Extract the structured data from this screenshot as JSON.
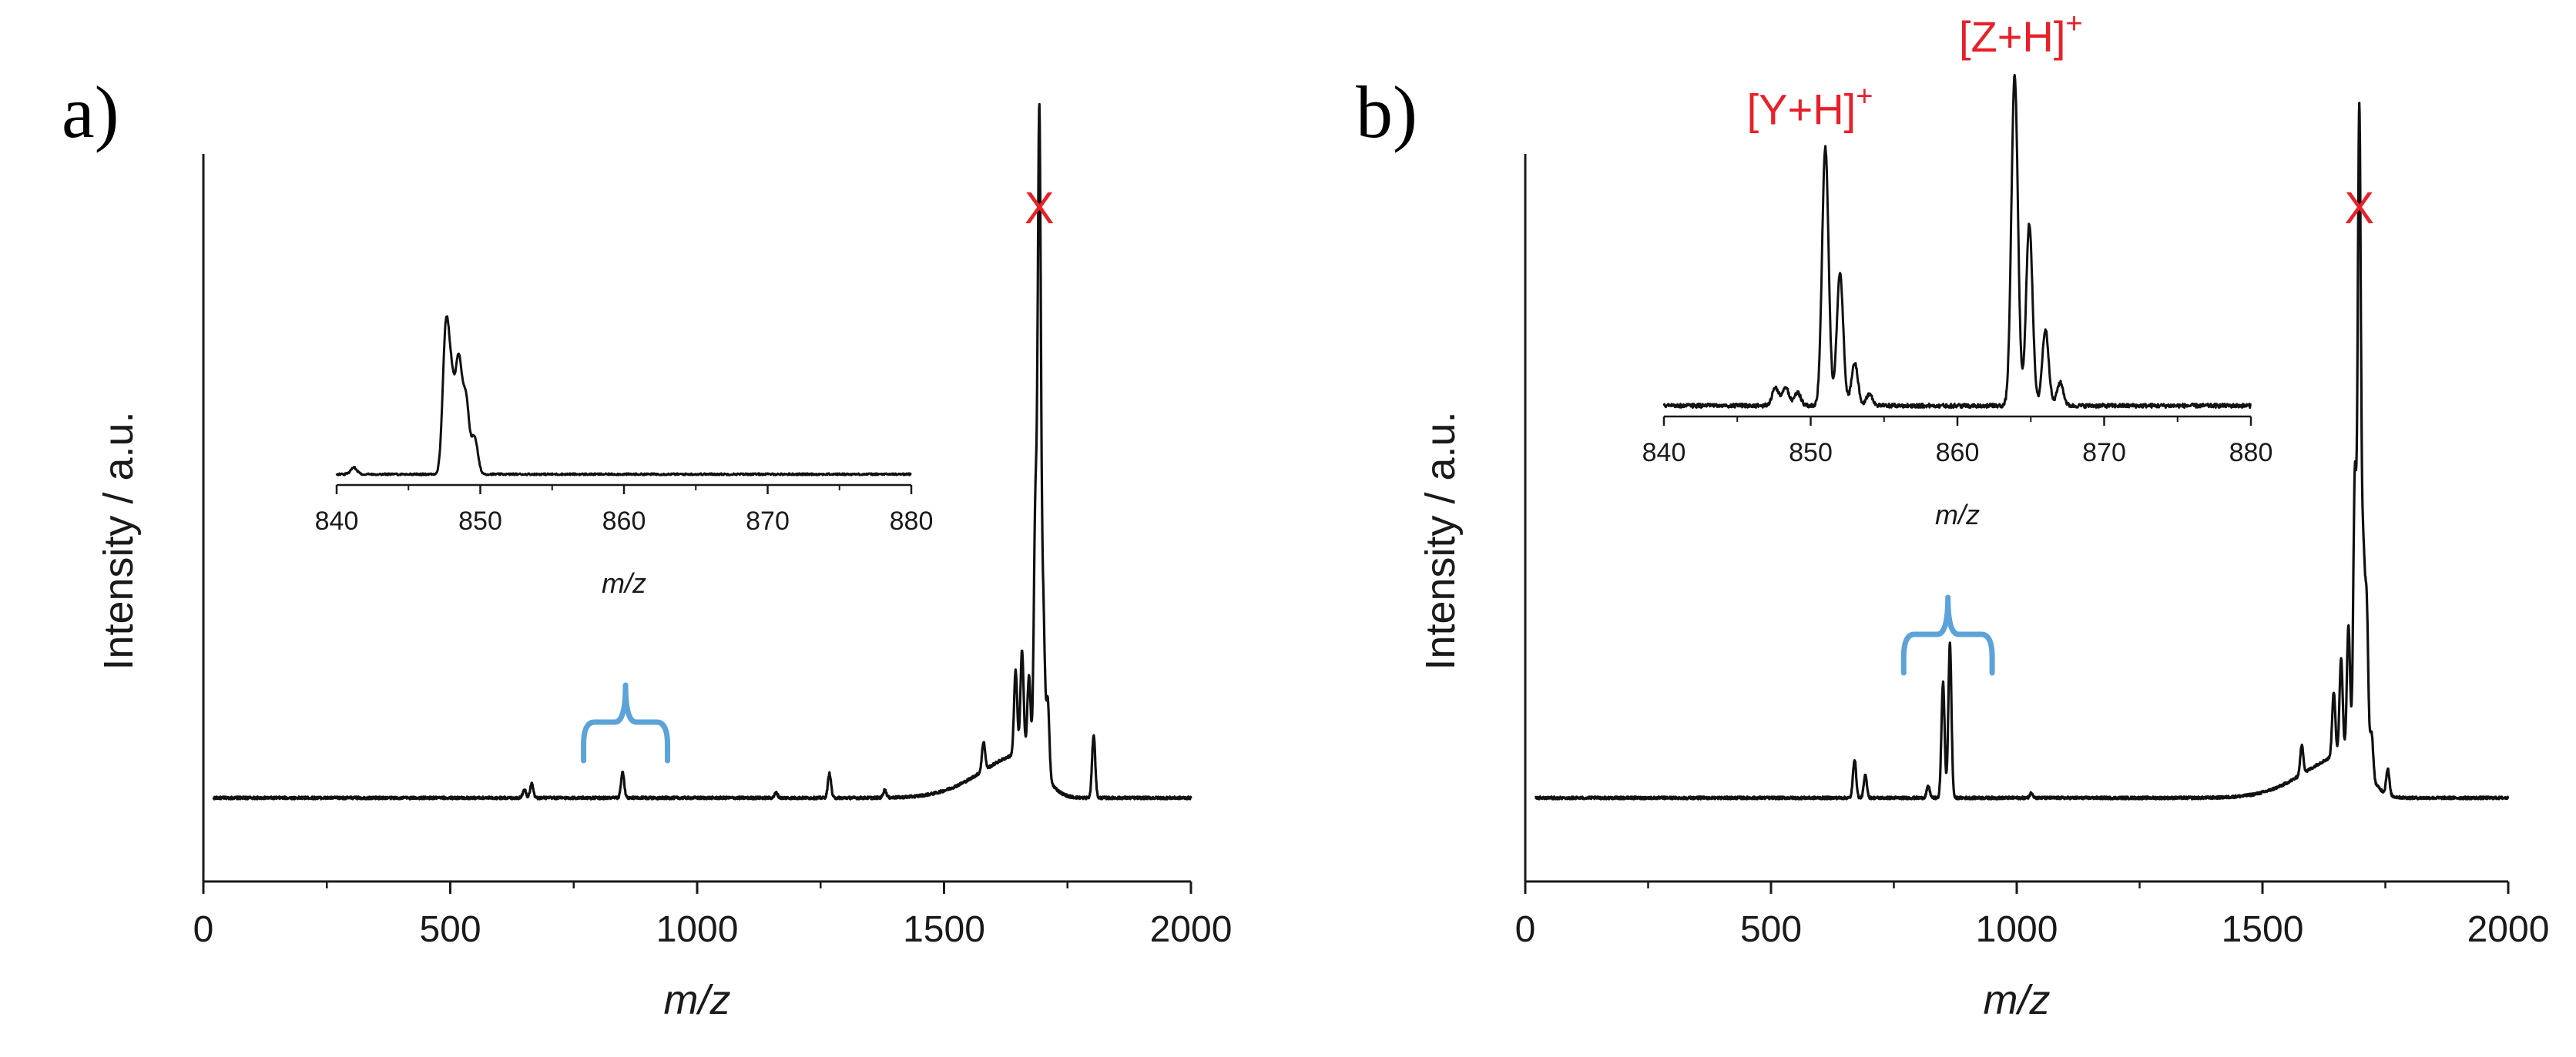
{
  "figure": {
    "colors": {
      "line": "#111111",
      "annotation": "#e8202a",
      "bracket": "#5ba3d9",
      "axis": "#1a1a1a"
    }
  },
  "chart_data": [
    {
      "type": "line",
      "panel_label": "a)",
      "title": "",
      "xlabel": "m/z",
      "ylabel": "Intensity / a.u.",
      "xlim": [
        0,
        2000
      ],
      "ylim": [
        0,
        1
      ],
      "xticks": [
        0,
        500,
        1000,
        1500,
        2000
      ],
      "xtick_labels": [
        "0",
        "500",
        "1000",
        "1500",
        "2000"
      ],
      "baseline": 0.13,
      "peaks": [
        [
          650,
          0.014
        ],
        [
          665,
          0.022
        ],
        [
          849,
          0.04
        ],
        [
          1160,
          0.008
        ],
        [
          1268,
          0.038
        ],
        [
          1380,
          0.012
        ],
        [
          1580,
          0.045
        ],
        [
          1645,
          0.13
        ],
        [
          1658,
          0.16
        ],
        [
          1672,
          0.12
        ],
        [
          1685,
          0.38
        ],
        [
          1693,
          1.0
        ],
        [
          1701,
          0.24
        ],
        [
          1710,
          0.12
        ],
        [
          1803,
          0.098
        ]
      ],
      "broad_hump": {
        "center": 1668,
        "height": 0.07,
        "width": 55
      },
      "annotations": [
        {
          "text": "X",
          "x": 1693
        }
      ],
      "bracket": {
        "x_from": 770,
        "x_to": 940,
        "label": ""
      },
      "inset": {
        "type": "line",
        "xlabel": "m/z",
        "xlim": [
          840,
          880
        ],
        "xticks": [
          840,
          850,
          860,
          870,
          880
        ],
        "xtick_labels": [
          "840",
          "850",
          "860",
          "870",
          "880"
        ],
        "ylim": [
          0,
          1
        ],
        "baseline": 0.1,
        "peaks": [
          [
            841.2,
            0.045
          ],
          [
            847.6,
            0.95
          ],
          [
            848.0,
            0.55
          ],
          [
            848.5,
            0.75
          ],
          [
            849.0,
            0.5
          ],
          [
            849.6,
            0.25
          ]
        ],
        "annotations": []
      }
    },
    {
      "type": "line",
      "panel_label": "b)",
      "title": "",
      "xlabel": "m/z",
      "ylabel": "Intensity / a.u.",
      "xlim": [
        0,
        2000
      ],
      "ylim": [
        0,
        1
      ],
      "xticks": [
        0,
        500,
        1000,
        1500,
        2000
      ],
      "xtick_labels": [
        "0",
        "500",
        "1000",
        "1500",
        "2000"
      ],
      "baseline": 0.13,
      "peaks": [
        [
          670,
          0.06
        ],
        [
          692,
          0.035
        ],
        [
          820,
          0.018
        ],
        [
          850,
          0.18
        ],
        [
          864,
          0.24
        ],
        [
          1030,
          0.008
        ],
        [
          1580,
          0.045
        ],
        [
          1645,
          0.1
        ],
        [
          1660,
          0.15
        ],
        [
          1675,
          0.2
        ],
        [
          1688,
          0.43
        ],
        [
          1697,
          1.0
        ],
        [
          1705,
          0.3
        ],
        [
          1712,
          0.25
        ],
        [
          1722,
          0.07
        ],
        [
          1755,
          0.04
        ]
      ],
      "broad_hump": {
        "center": 1680,
        "height": 0.07,
        "width": 55
      },
      "annotations": [
        {
          "text": "X",
          "x": 1697
        }
      ],
      "bracket": {
        "x_from": 770,
        "x_to": 950,
        "label": ""
      },
      "inset": {
        "type": "line",
        "xlabel": "m/z",
        "xlim": [
          840,
          880
        ],
        "xticks": [
          840,
          850,
          860,
          870,
          880
        ],
        "xtick_labels": [
          "840",
          "850",
          "860",
          "870",
          "880"
        ],
        "ylim": [
          0,
          1
        ],
        "baseline": 0.1,
        "peaks": [
          [
            847.6,
            0.055
          ],
          [
            848.3,
            0.055
          ],
          [
            849.1,
            0.04
          ],
          [
            851.0,
            0.78
          ],
          [
            852.0,
            0.4
          ],
          [
            853.0,
            0.13
          ],
          [
            854.0,
            0.035
          ],
          [
            863.9,
            1.0
          ],
          [
            864.9,
            0.55
          ],
          [
            866.0,
            0.23
          ],
          [
            867.0,
            0.07
          ]
        ],
        "annotations": [
          {
            "text": "[Y+H]",
            "superscript": "+",
            "x": 851.0
          },
          {
            "text": "[Z+H]",
            "superscript": "+",
            "x": 863.9
          }
        ]
      }
    }
  ]
}
